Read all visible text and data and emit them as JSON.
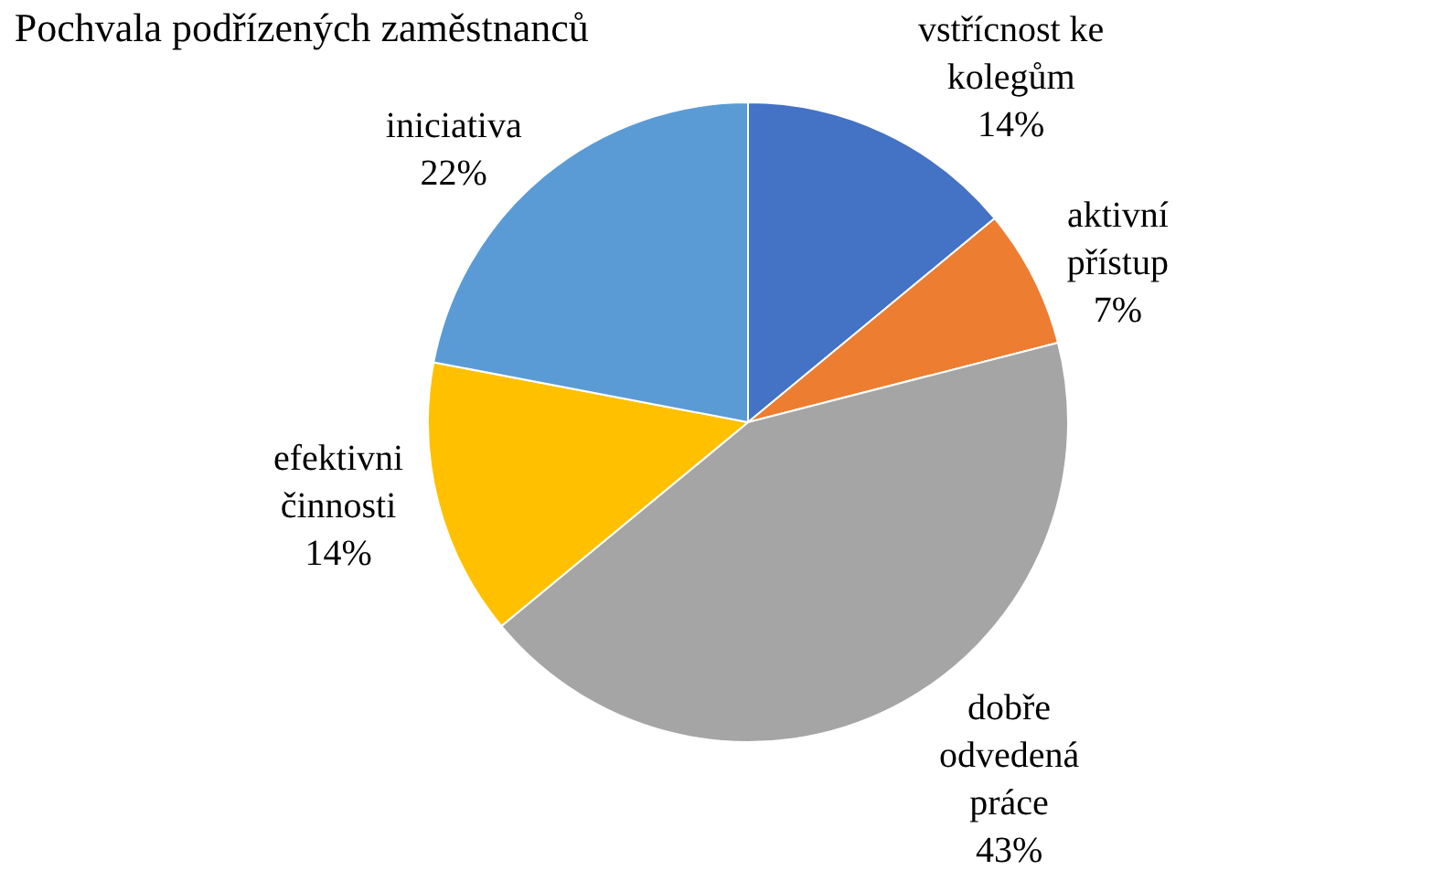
{
  "chart_data": {
    "type": "pie",
    "title": "Pochvala podřízených zaměstnanců",
    "categories": [
      "vstřícnost ke kolegům",
      "aktivní přístup",
      "dobře odvedená práce",
      "efektivni činnosti",
      "iniciativa"
    ],
    "values": [
      14,
      7,
      43,
      14,
      22
    ],
    "value_labels": [
      "14%",
      "7%",
      "43%",
      "14%",
      "22%"
    ],
    "colors": [
      "#4472c4",
      "#ed7d31",
      "#a5a5a5",
      "#ffc000",
      "#5b9bd5"
    ],
    "legend": false
  }
}
